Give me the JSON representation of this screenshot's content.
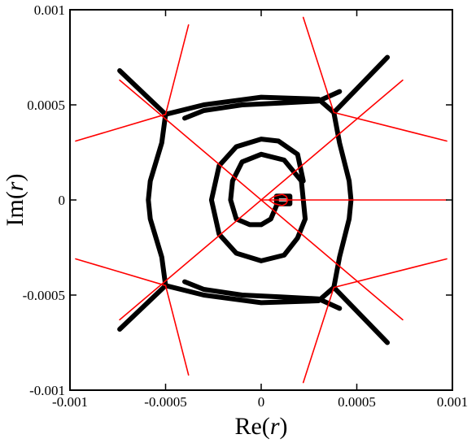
{
  "chart_data": {
    "type": "line",
    "title": "",
    "xlabel": {
      "prefix": "Re(",
      "var": "r",
      "suffix": ")"
    },
    "ylabel": {
      "prefix": "Im(",
      "var": "r",
      "suffix": ")"
    },
    "xlim": [
      -0.001,
      0.001
    ],
    "ylim": [
      -0.001,
      0.001
    ],
    "x_ticks": [
      -0.001,
      -0.0005,
      0,
      0.0005,
      0.001
    ],
    "y_ticks": [
      -0.001,
      -0.0005,
      0,
      0.0005,
      0.001
    ],
    "x_tick_labels": [
      "-0.001",
      "-0.0005",
      "0",
      "0.0005",
      "0.001"
    ],
    "y_tick_labels": [
      "-0.001",
      "-0.0005",
      "0",
      "0.0005",
      "0.001"
    ],
    "grid": false,
    "colors": {
      "black_curves": "#000000",
      "red_lines": "#ff0000"
    },
    "series": [
      {
        "color": "#000000",
        "style": "thick",
        "curves": [
          [
            [
              -0.00074,
              0.00068
            ],
            [
              -0.0005,
              0.00045
            ]
          ],
          [
            [
              0.00066,
              0.00075
            ],
            [
              0.00038,
              0.00046
            ]
          ],
          [
            [
              -0.00074,
              -0.00068
            ],
            [
              -0.0005,
              -0.00045
            ]
          ],
          [
            [
              0.00066,
              -0.00075
            ],
            [
              0.00038,
              -0.00046
            ]
          ],
          [
            [
              -0.0005,
              0.00045
            ],
            [
              -0.00052,
              0.0003
            ],
            [
              -0.00058,
              0.0001
            ],
            [
              -0.00059,
              0
            ],
            [
              -0.00058,
              -0.0001
            ],
            [
              -0.00052,
              -0.0003
            ],
            [
              -0.0005,
              -0.00045
            ]
          ],
          [
            [
              0.00038,
              0.00046
            ],
            [
              0.00041,
              0.0003
            ],
            [
              0.00046,
              0.0001
            ],
            [
              0.00047,
              0
            ],
            [
              0.00046,
              -0.0001
            ],
            [
              0.00041,
              -0.0003
            ],
            [
              0.00038,
              -0.00046
            ]
          ],
          [
            [
              -0.0005,
              0.00045
            ],
            [
              -0.0003,
              0.0005
            ],
            [
              0,
              0.00054
            ],
            [
              0.0003,
              0.00053
            ],
            [
              0.00038,
              0.00046
            ]
          ],
          [
            [
              -0.0005,
              -0.00045
            ],
            [
              -0.0003,
              -0.0005
            ],
            [
              0,
              -0.00054
            ],
            [
              0.0003,
              -0.00053
            ],
            [
              0.00038,
              -0.00046
            ]
          ],
          [
            [
              -0.0004,
              0.00043
            ],
            [
              -0.0003,
              0.00047
            ],
            [
              -0.0001,
              0.0005
            ],
            [
              0.0001,
              0.00051
            ],
            [
              0.0003,
              0.00052
            ],
            [
              0.00041,
              0.00057
            ]
          ],
          [
            [
              -0.0004,
              -0.00043
            ],
            [
              -0.0003,
              -0.00047
            ],
            [
              -0.0001,
              -0.0005
            ],
            [
              0.0001,
              -0.00051
            ],
            [
              0.0003,
              -0.00052
            ],
            [
              0.00041,
              -0.00057
            ]
          ],
          [
            [
              0.00022,
              0.0001
            ],
            [
              0.00019,
              0.00024
            ],
            [
              9e-05,
              0.00031
            ],
            [
              0,
              0.00032
            ],
            [
              -0.00013,
              0.00028
            ],
            [
              -0.00022,
              0.00018
            ],
            [
              -0.00026,
              0
            ],
            [
              -0.00022,
              -0.00018
            ],
            [
              -0.00013,
              -0.00028
            ],
            [
              0,
              -0.00032
            ],
            [
              0.00012,
              -0.00029
            ],
            [
              0.00019,
              -0.0002
            ],
            [
              0.00023,
              -0.0001
            ],
            [
              0.00021,
              0.0001
            ],
            [
              0.00012,
              0.00021
            ],
            [
              0,
              0.00024
            ],
            [
              -0.0001,
              0.0002
            ],
            [
              -0.00015,
              0.0001
            ],
            [
              -0.00016,
              0
            ],
            [
              -0.00013,
              -0.0001
            ],
            [
              -6e-05,
              -0.00013
            ],
            [
              0,
              -0.00013
            ],
            [
              5e-05,
              -0.0001
            ],
            [
              8e-05,
              -3e-05
            ],
            [
              8e-05,
              2e-05
            ],
            [
              0.00015,
              2e-05
            ],
            [
              0.00015,
              -2e-05
            ],
            [
              8e-05,
              -2e-05
            ]
          ]
        ]
      },
      {
        "color": "#ff0000",
        "style": "thin",
        "curves": [
          [
            [
              -0.00074,
              0.00063
            ],
            [
              0.00074,
              -0.00063
            ]
          ],
          [
            [
              -0.00074,
              -0.00063
            ],
            [
              0.00074,
              0.00063
            ]
          ],
          [
            [
              0,
              0
            ],
            [
              0.00097,
              0
            ]
          ],
          [
            [
              -0.00097,
              0.00031
            ],
            [
              -0.0005,
              0.00045
            ],
            [
              -0.00038,
              0.00092
            ]
          ],
          [
            [
              -0.00097,
              -0.00031
            ],
            [
              -0.0005,
              -0.00045
            ],
            [
              -0.00038,
              -0.00092
            ]
          ],
          [
            [
              0.00097,
              0.00031
            ],
            [
              0.00038,
              0.00046
            ],
            [
              0.00022,
              0.00096
            ]
          ],
          [
            [
              0.00097,
              -0.00031
            ],
            [
              0.00038,
              -0.00046
            ],
            [
              0.00022,
              -0.00096
            ]
          ],
          [
            [
              0.00014,
              0
            ],
            [
              0.00013,
              2e-05
            ],
            [
              0.00011,
              3e-05
            ],
            [
              7e-05,
              2e-05
            ],
            [
              4e-05,
              0
            ],
            [
              7e-05,
              -2e-05
            ],
            [
              0.00011,
              -3e-05
            ],
            [
              0.00013,
              -2e-05
            ],
            [
              0.00014,
              0
            ]
          ]
        ]
      }
    ]
  }
}
